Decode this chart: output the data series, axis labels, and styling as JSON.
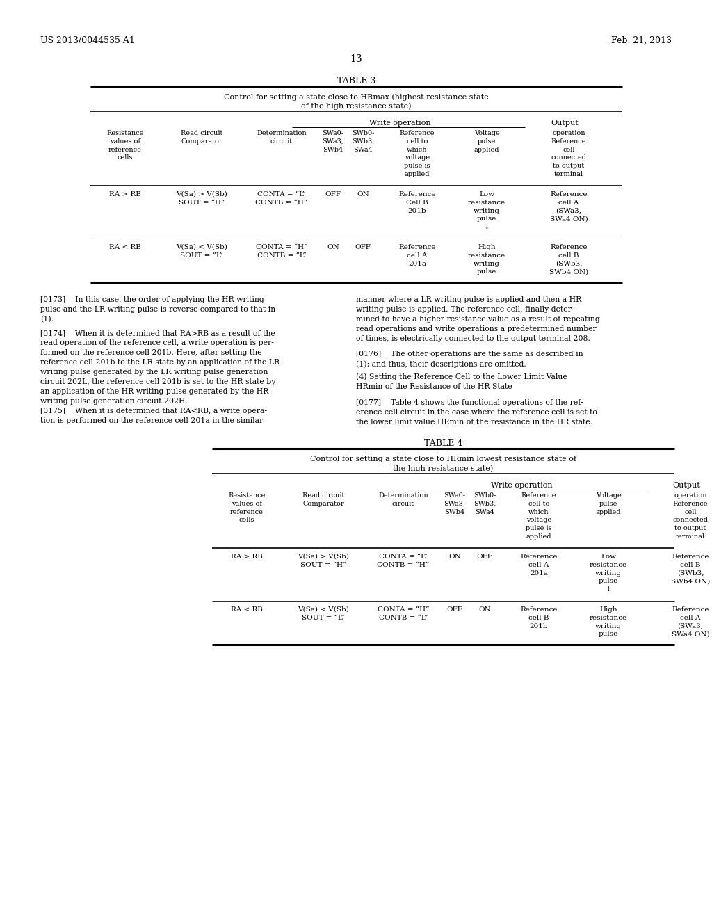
{
  "header_left": "US 2013/0044535 A1",
  "header_right": "Feb. 21, 2013",
  "page_number": "13",
  "bg_color": "#ffffff",
  "text_color": "#000000",
  "table3_title": "TABLE 3",
  "table3_sub1": "Control for setting a state close to HRmax (highest resistance state",
  "table3_sub2": "of the high resistance state)",
  "table4_title": "TABLE 4",
  "table4_sub1": "Control for setting a state close to HRmin lowest resistance state of",
  "table4_sub2": "the high resistance state)",
  "write_op": "Write operation",
  "output_hdr": "Output",
  "col0": "Resistance\nvalues of\nreference\ncells",
  "col1": "Read circuit\nComparator",
  "col2": "Determination\ncircuit",
  "col3": "SWa0-\nSWa3,\nSWb4",
  "col4": "SWb0-\nSWb3,\nSWa4",
  "col5": "Reference\ncell to\nwhich\nvoltage\npulse is\napplied",
  "col6": "Voltage\npulse\napplied",
  "col7": "operation\nReference\ncell\nconnected\nto output\nterminal",
  "t3r1c0": "RA > RB",
  "t3r1c1": "V(Sa) > V(Sb)\nSOUT = “H”",
  "t3r1c2": "CONTA = “L”\nCONTB = “H”",
  "t3r1c3": "OFF",
  "t3r1c4": "ON",
  "t3r1c5": "Reference\nCell B\n201b",
  "t3r1c6": "Low\nresistance\nwriting\npulse\n↓",
  "t3r1c7": "Reference\ncell A\n(SWa3,\nSWa4 ON)",
  "t3r2c0": "RA < RB",
  "t3r2c1": "V(Sa) < V(Sb)\nSOUT = “L”",
  "t3r2c2": "CONTA = “H”\nCONTB = “L”",
  "t3r2c3": "ON",
  "t3r2c4": "OFF",
  "t3r2c5": "Reference\ncell A\n201a",
  "t3r2c6": "High\nresistance\nwriting\npulse",
  "t3r2c7": "Reference\ncell B\n(SWb3,\nSWb4 ON)",
  "t4r1c0": "RA > RB",
  "t4r1c1": "V(Sa) > V(Sb)\nSOUT = “H”",
  "t4r1c2": "CONTA = “L”\nCONTB = “H”",
  "t4r1c3": "ON",
  "t4r1c4": "OFF",
  "t4r1c5": "Reference\ncell A\n201a",
  "t4r1c6": "Low\nresistance\nwriting\npulse\n↓",
  "t4r1c7": "Reference\ncell B\n(SWb3,\nSWb4 ON)",
  "t4r2c0": "RA < RB",
  "t4r2c1": "V(Sa) < V(Sb)\nSOUT = “L”",
  "t4r2c2": "CONTA = “H”\nCONTB = “L”",
  "t4r2c3": "OFF",
  "t4r2c4": "ON",
  "t4r2c5": "Reference\ncell B\n201b",
  "t4r2c6": "High\nresistance\nwriting\npulse",
  "t4r2c7": "Reference\ncell A\n(SWa3,\nSWa4 ON)",
  "para173L": "[0173]    In this case, the order of applying the HR writing\npulse and the LR writing pulse is reverse compared to that in\n(1).",
  "para174L": "[0174]    When it is determined that RA>RB as a result of the\nread operation of the reference cell, a write operation is per-\nformed on the reference cell 201b. Here, after setting the\nreference cell 201b to the LR state by an application of the LR\nwriting pulse generated by the LR writing pulse generation\ncircuit 202L, the reference cell 201b is set to the HR state by\nan application of the HR writing pulse generated by the HR\nwriting pulse generation circuit 202H.",
  "para175L": "[0175]    When it is determined that RA<RB, a write opera-\ntion is performed on the reference cell 201a in the similar",
  "para173R": "manner where a LR writing pulse is applied and then a HR\nwriting pulse is applied. The reference cell, finally deter-\nmined to have a higher resistance value as a result of repeating\nread operations and write operations a predetermined number\nof times, is electrically connected to the output terminal 208.",
  "para176R": "[0176]    The other operations are the same as described in\n(1); and thus, their descriptions are omitted.",
  "headingR": "(4) Setting the Reference Cell to the Lower Limit Value\nHRmin of the Resistance of the HR State",
  "para177R": "[0177]    Table 4 shows the functional operations of the ref-\nerence cell circuit in the case where the reference cell is set to\nthe lower limit value HRmin of the resistance in the HR state."
}
